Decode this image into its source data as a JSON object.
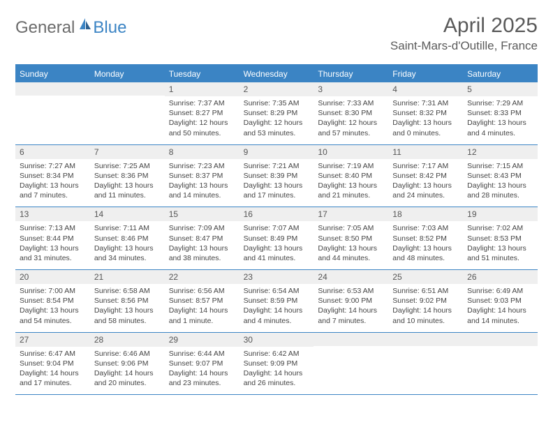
{
  "logo": {
    "general": "General",
    "blue": "Blue"
  },
  "title": "April 2025",
  "location": "Saint-Mars-d'Outille, France",
  "colors": {
    "accent": "#3b84c4",
    "header_bg": "#3b84c4",
    "daynum_bg": "#efefef",
    "text": "#444444",
    "title_text": "#5a5a5a"
  },
  "days_of_week": [
    "Sunday",
    "Monday",
    "Tuesday",
    "Wednesday",
    "Thursday",
    "Friday",
    "Saturday"
  ],
  "weeks": [
    [
      {
        "num": "",
        "sunrise": "",
        "sunset": "",
        "daylight": ""
      },
      {
        "num": "",
        "sunrise": "",
        "sunset": "",
        "daylight": ""
      },
      {
        "num": "1",
        "sunrise": "Sunrise: 7:37 AM",
        "sunset": "Sunset: 8:27 PM",
        "daylight": "Daylight: 12 hours and 50 minutes."
      },
      {
        "num": "2",
        "sunrise": "Sunrise: 7:35 AM",
        "sunset": "Sunset: 8:29 PM",
        "daylight": "Daylight: 12 hours and 53 minutes."
      },
      {
        "num": "3",
        "sunrise": "Sunrise: 7:33 AM",
        "sunset": "Sunset: 8:30 PM",
        "daylight": "Daylight: 12 hours and 57 minutes."
      },
      {
        "num": "4",
        "sunrise": "Sunrise: 7:31 AM",
        "sunset": "Sunset: 8:32 PM",
        "daylight": "Daylight: 13 hours and 0 minutes."
      },
      {
        "num": "5",
        "sunrise": "Sunrise: 7:29 AM",
        "sunset": "Sunset: 8:33 PM",
        "daylight": "Daylight: 13 hours and 4 minutes."
      }
    ],
    [
      {
        "num": "6",
        "sunrise": "Sunrise: 7:27 AM",
        "sunset": "Sunset: 8:34 PM",
        "daylight": "Daylight: 13 hours and 7 minutes."
      },
      {
        "num": "7",
        "sunrise": "Sunrise: 7:25 AM",
        "sunset": "Sunset: 8:36 PM",
        "daylight": "Daylight: 13 hours and 11 minutes."
      },
      {
        "num": "8",
        "sunrise": "Sunrise: 7:23 AM",
        "sunset": "Sunset: 8:37 PM",
        "daylight": "Daylight: 13 hours and 14 minutes."
      },
      {
        "num": "9",
        "sunrise": "Sunrise: 7:21 AM",
        "sunset": "Sunset: 8:39 PM",
        "daylight": "Daylight: 13 hours and 17 minutes."
      },
      {
        "num": "10",
        "sunrise": "Sunrise: 7:19 AM",
        "sunset": "Sunset: 8:40 PM",
        "daylight": "Daylight: 13 hours and 21 minutes."
      },
      {
        "num": "11",
        "sunrise": "Sunrise: 7:17 AM",
        "sunset": "Sunset: 8:42 PM",
        "daylight": "Daylight: 13 hours and 24 minutes."
      },
      {
        "num": "12",
        "sunrise": "Sunrise: 7:15 AM",
        "sunset": "Sunset: 8:43 PM",
        "daylight": "Daylight: 13 hours and 28 minutes."
      }
    ],
    [
      {
        "num": "13",
        "sunrise": "Sunrise: 7:13 AM",
        "sunset": "Sunset: 8:44 PM",
        "daylight": "Daylight: 13 hours and 31 minutes."
      },
      {
        "num": "14",
        "sunrise": "Sunrise: 7:11 AM",
        "sunset": "Sunset: 8:46 PM",
        "daylight": "Daylight: 13 hours and 34 minutes."
      },
      {
        "num": "15",
        "sunrise": "Sunrise: 7:09 AM",
        "sunset": "Sunset: 8:47 PM",
        "daylight": "Daylight: 13 hours and 38 minutes."
      },
      {
        "num": "16",
        "sunrise": "Sunrise: 7:07 AM",
        "sunset": "Sunset: 8:49 PM",
        "daylight": "Daylight: 13 hours and 41 minutes."
      },
      {
        "num": "17",
        "sunrise": "Sunrise: 7:05 AM",
        "sunset": "Sunset: 8:50 PM",
        "daylight": "Daylight: 13 hours and 44 minutes."
      },
      {
        "num": "18",
        "sunrise": "Sunrise: 7:03 AM",
        "sunset": "Sunset: 8:52 PM",
        "daylight": "Daylight: 13 hours and 48 minutes."
      },
      {
        "num": "19",
        "sunrise": "Sunrise: 7:02 AM",
        "sunset": "Sunset: 8:53 PM",
        "daylight": "Daylight: 13 hours and 51 minutes."
      }
    ],
    [
      {
        "num": "20",
        "sunrise": "Sunrise: 7:00 AM",
        "sunset": "Sunset: 8:54 PM",
        "daylight": "Daylight: 13 hours and 54 minutes."
      },
      {
        "num": "21",
        "sunrise": "Sunrise: 6:58 AM",
        "sunset": "Sunset: 8:56 PM",
        "daylight": "Daylight: 13 hours and 58 minutes."
      },
      {
        "num": "22",
        "sunrise": "Sunrise: 6:56 AM",
        "sunset": "Sunset: 8:57 PM",
        "daylight": "Daylight: 14 hours and 1 minute."
      },
      {
        "num": "23",
        "sunrise": "Sunrise: 6:54 AM",
        "sunset": "Sunset: 8:59 PM",
        "daylight": "Daylight: 14 hours and 4 minutes."
      },
      {
        "num": "24",
        "sunrise": "Sunrise: 6:53 AM",
        "sunset": "Sunset: 9:00 PM",
        "daylight": "Daylight: 14 hours and 7 minutes."
      },
      {
        "num": "25",
        "sunrise": "Sunrise: 6:51 AM",
        "sunset": "Sunset: 9:02 PM",
        "daylight": "Daylight: 14 hours and 10 minutes."
      },
      {
        "num": "26",
        "sunrise": "Sunrise: 6:49 AM",
        "sunset": "Sunset: 9:03 PM",
        "daylight": "Daylight: 14 hours and 14 minutes."
      }
    ],
    [
      {
        "num": "27",
        "sunrise": "Sunrise: 6:47 AM",
        "sunset": "Sunset: 9:04 PM",
        "daylight": "Daylight: 14 hours and 17 minutes."
      },
      {
        "num": "28",
        "sunrise": "Sunrise: 6:46 AM",
        "sunset": "Sunset: 9:06 PM",
        "daylight": "Daylight: 14 hours and 20 minutes."
      },
      {
        "num": "29",
        "sunrise": "Sunrise: 6:44 AM",
        "sunset": "Sunset: 9:07 PM",
        "daylight": "Daylight: 14 hours and 23 minutes."
      },
      {
        "num": "30",
        "sunrise": "Sunrise: 6:42 AM",
        "sunset": "Sunset: 9:09 PM",
        "daylight": "Daylight: 14 hours and 26 minutes."
      },
      {
        "num": "",
        "sunrise": "",
        "sunset": "",
        "daylight": ""
      },
      {
        "num": "",
        "sunrise": "",
        "sunset": "",
        "daylight": ""
      },
      {
        "num": "",
        "sunrise": "",
        "sunset": "",
        "daylight": ""
      }
    ]
  ]
}
